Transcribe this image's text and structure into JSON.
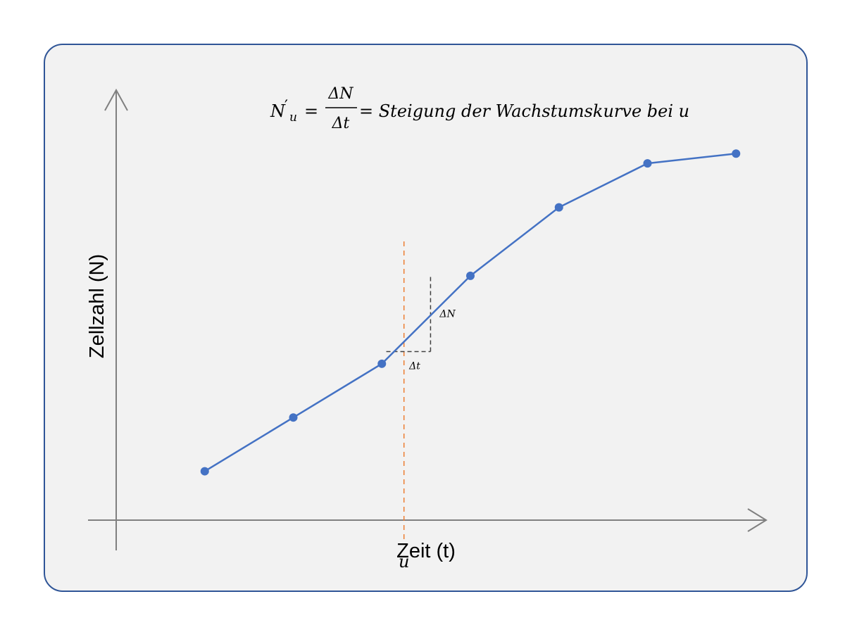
{
  "chart_data": {
    "type": "line",
    "title": "",
    "xlabel": "Zeit (t)",
    "ylabel": "Zellzahl (N)",
    "x": [
      1,
      2,
      3,
      4,
      5,
      6,
      7
    ],
    "series": [
      {
        "values": [
          1.0,
          2.1,
          3.2,
          5.0,
          6.4,
          7.3,
          7.5
        ]
      }
    ],
    "xlim": [
      0,
      7.3
    ],
    "ylim": [
      0,
      8.8
    ],
    "show_tick_labels": false,
    "grid": false,
    "legend": "none",
    "colors": {
      "line": "#4472C4",
      "marker": "#4472C4",
      "axis": "#808080",
      "marker_line": "#ED7D31",
      "tangent_triangle": "#404040",
      "panel_background": "#F2F2F2",
      "panel_border": "#2F5597"
    },
    "annotations": {
      "formula": {
        "lhs_base": "N",
        "lhs_prime": "′",
        "lhs_sub": "u",
        "equals": "=",
        "numerator": "ΔN",
        "denominator": "Δt",
        "rhs": "= Steigung der Wachstumskurve bei u"
      },
      "u_marker": {
        "x": 3.25,
        "label": "u"
      },
      "slope_triangle": {
        "x_start": 3.05,
        "x_end": 3.55,
        "y_base": 3.45,
        "y_top": 5.0,
        "delta_t_label": "Δt",
        "delta_n_label": "ΔN"
      }
    }
  }
}
